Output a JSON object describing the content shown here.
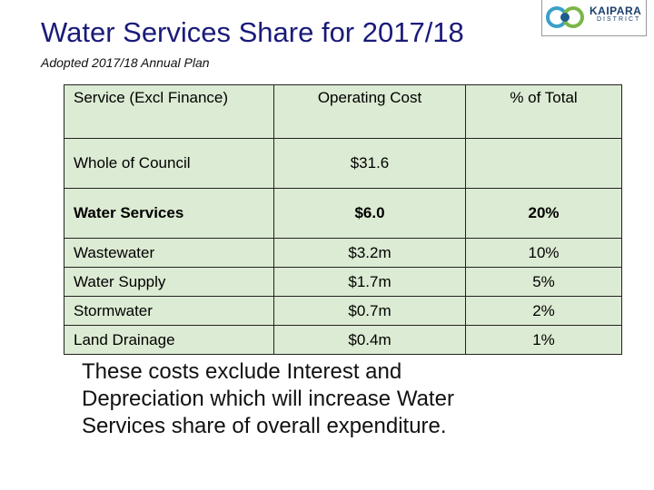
{
  "header": {
    "title": "Water Services Share for 2017/18",
    "subtitle": "Adopted 2017/18 Annual Plan",
    "logo": [
      "KAIPARA",
      "DISTRICT"
    ]
  },
  "table": {
    "header": [
      "Service (Excl Finance)",
      "Operating Cost",
      "% of Total"
    ],
    "rows": [
      [
        "Whole of Council",
        "$31.6",
        null
      ],
      [
        "Water Services",
        "$6.0",
        "20%"
      ],
      [
        "Wastewater",
        "$3.2m",
        "10%"
      ],
      [
        "Water Supply",
        "$1.7m",
        "5%"
      ],
      [
        "Stormwater",
        "$0.7m",
        "2%"
      ],
      [
        "Land Drainage",
        "$0.4m",
        "1%"
      ]
    ]
  },
  "note": [
    "These costs exclude Interest and",
    "Depreciation which will increase Water",
    "Services share of overall expenditure."
  ]
}
